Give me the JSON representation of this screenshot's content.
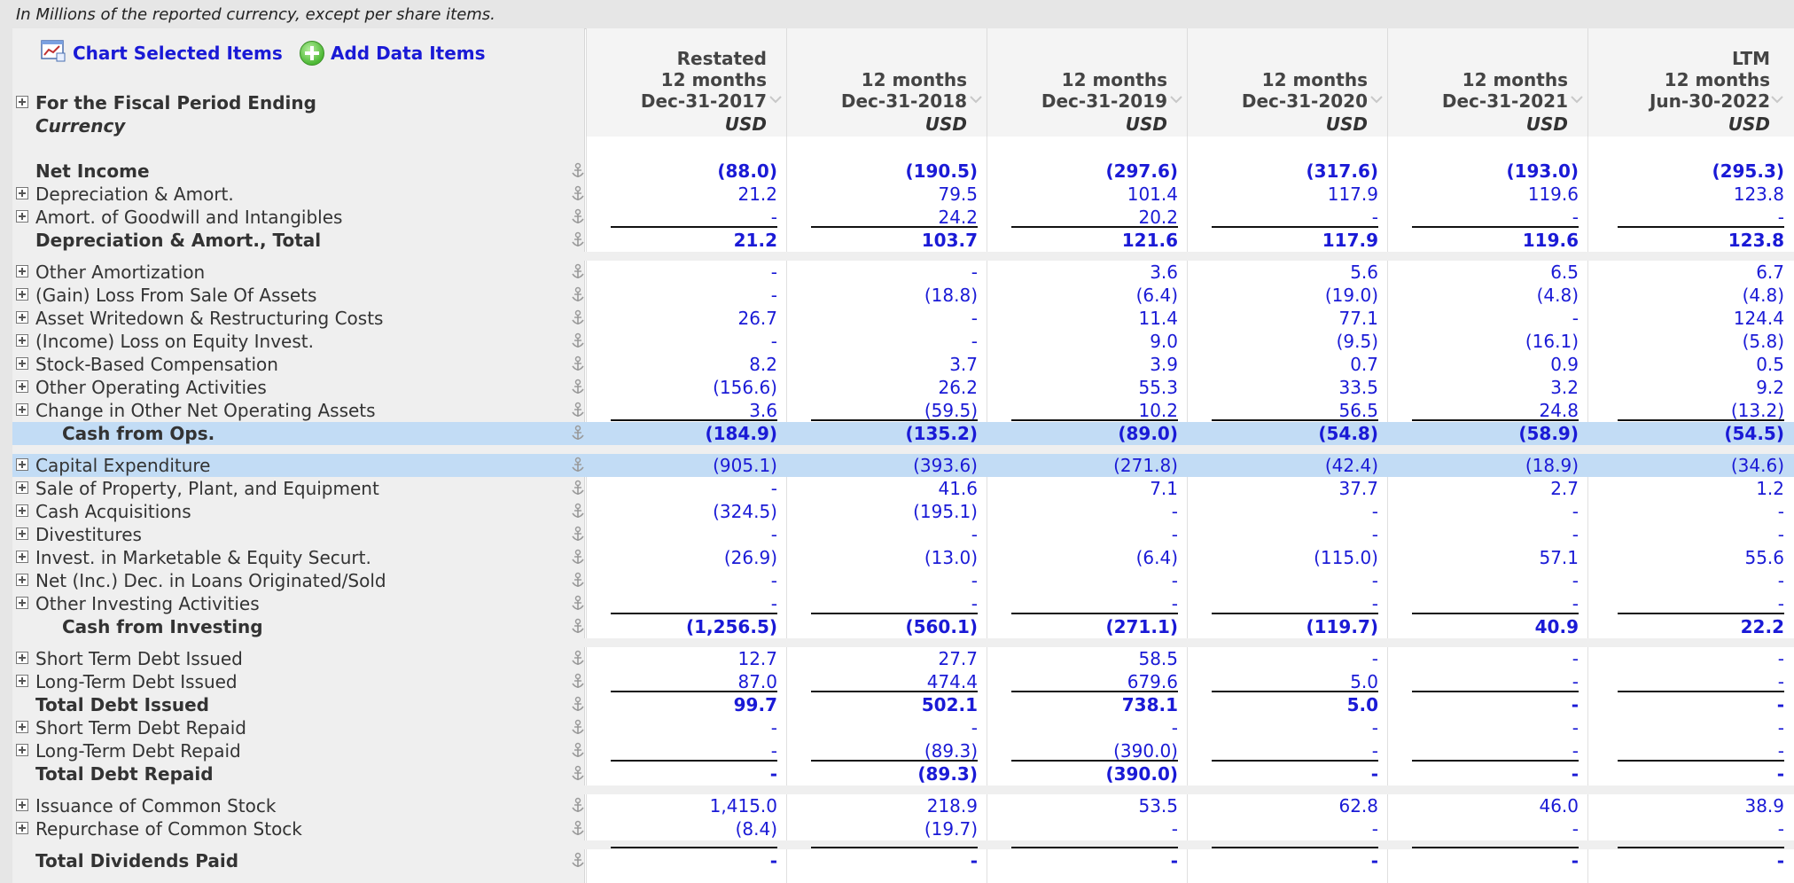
{
  "note": "In Millions of the reported currency, except per share items.",
  "toolbar": {
    "chart_label": "Chart Selected Items",
    "add_label": "Add Data Items"
  },
  "header": {
    "period_label": "For the Fiscal Period Ending",
    "currency_label": "Currency"
  },
  "columns": [
    {
      "pre": "Restated",
      "line1": "12 months",
      "line2": "Dec-31-2017",
      "currency": "USD"
    },
    {
      "pre": "",
      "line1": "12 months",
      "line2": "Dec-31-2018",
      "currency": "USD"
    },
    {
      "pre": "",
      "line1": "12 months",
      "line2": "Dec-31-2019",
      "currency": "USD"
    },
    {
      "pre": "",
      "line1": "12 months",
      "line2": "Dec-31-2020",
      "currency": "USD"
    },
    {
      "pre": "",
      "line1": "12 months",
      "line2": "Dec-31-2021",
      "currency": "USD"
    },
    {
      "pre": "LTM",
      "line1": "12 months",
      "line2": "Jun-30-2022",
      "currency": "USD"
    }
  ],
  "rows": [
    {
      "label": "Net Income",
      "bold": true,
      "indent": 0,
      "expand": false,
      "values": [
        "(88.0)",
        "(190.5)",
        "(297.6)",
        "(317.6)",
        "(193.0)",
        "(295.3)"
      ]
    },
    {
      "label": "Depreciation & Amort.",
      "expand": true,
      "values": [
        "21.2",
        "79.5",
        "101.4",
        "117.9",
        "119.6",
        "123.8"
      ]
    },
    {
      "label": "Amort. of Goodwill and Intangibles",
      "expand": true,
      "values": [
        "-",
        "24.2",
        "20.2",
        "-",
        "-",
        "-"
      ]
    },
    {
      "label": "Depreciation & Amort., Total",
      "bold": true,
      "total": true,
      "values": [
        "21.2",
        "103.7",
        "121.6",
        "117.9",
        "119.6",
        "123.8"
      ]
    },
    {
      "gap": true
    },
    {
      "label": "Other Amortization",
      "expand": true,
      "values": [
        "-",
        "-",
        "3.6",
        "5.6",
        "6.5",
        "6.7"
      ]
    },
    {
      "label": "(Gain) Loss From Sale Of Assets",
      "expand": true,
      "values": [
        "-",
        "(18.8)",
        "(6.4)",
        "(19.0)",
        "(4.8)",
        "(4.8)"
      ]
    },
    {
      "label": "Asset Writedown & Restructuring Costs",
      "expand": true,
      "values": [
        "26.7",
        "-",
        "11.4",
        "77.1",
        "-",
        "124.4"
      ]
    },
    {
      "label": "(Income) Loss on Equity Invest.",
      "expand": true,
      "values": [
        "-",
        "-",
        "9.0",
        "(9.5)",
        "(16.1)",
        "(5.8)"
      ]
    },
    {
      "label": "Stock-Based Compensation",
      "expand": true,
      "values": [
        "8.2",
        "3.7",
        "3.9",
        "0.7",
        "0.9",
        "0.5"
      ]
    },
    {
      "label": "Other Operating Activities",
      "expand": true,
      "values": [
        "(156.6)",
        "26.2",
        "55.3",
        "33.5",
        "3.2",
        "9.2"
      ]
    },
    {
      "label": "Change in Other Net Operating Assets",
      "expand": true,
      "values": [
        "3.6",
        "(59.5)",
        "10.2",
        "56.5",
        "24.8",
        "(13.2)"
      ]
    },
    {
      "label": "Cash from Ops.",
      "bold": true,
      "total": true,
      "sub": true,
      "selected": true,
      "values": [
        "(184.9)",
        "(135.2)",
        "(89.0)",
        "(54.8)",
        "(58.9)",
        "(54.5)"
      ]
    },
    {
      "gap": true
    },
    {
      "label": "Capital Expenditure",
      "expand": true,
      "selected": true,
      "values": [
        "(905.1)",
        "(393.6)",
        "(271.8)",
        "(42.4)",
        "(18.9)",
        "(34.6)"
      ]
    },
    {
      "label": "Sale of Property, Plant, and Equipment",
      "expand": true,
      "values": [
        "-",
        "41.6",
        "7.1",
        "37.7",
        "2.7",
        "1.2"
      ]
    },
    {
      "label": "Cash Acquisitions",
      "expand": true,
      "values": [
        "(324.5)",
        "(195.1)",
        "-",
        "-",
        "-",
        "-"
      ]
    },
    {
      "label": "Divestitures",
      "expand": true,
      "values": [
        "-",
        "-",
        "-",
        "-",
        "-",
        "-"
      ]
    },
    {
      "label": "Invest. in Marketable & Equity Securt.",
      "expand": true,
      "values": [
        "(26.9)",
        "(13.0)",
        "(6.4)",
        "(115.0)",
        "57.1",
        "55.6"
      ]
    },
    {
      "label": "Net (Inc.) Dec. in Loans Originated/Sold",
      "expand": true,
      "values": [
        "-",
        "-",
        "-",
        "-",
        "-",
        "-"
      ]
    },
    {
      "label": "Other Investing Activities",
      "expand": true,
      "values": [
        "-",
        "-",
        "-",
        "-",
        "-",
        "-"
      ]
    },
    {
      "label": "Cash from Investing",
      "bold": true,
      "total": true,
      "sub": true,
      "values": [
        "(1,256.5)",
        "(560.1)",
        "(271.1)",
        "(119.7)",
        "40.9",
        "22.2"
      ]
    },
    {
      "gap": true
    },
    {
      "label": "Short Term Debt Issued",
      "expand": true,
      "values": [
        "12.7",
        "27.7",
        "58.5",
        "-",
        "-",
        "-"
      ]
    },
    {
      "label": "Long-Term Debt Issued",
      "expand": true,
      "values": [
        "87.0",
        "474.4",
        "679.6",
        "5.0",
        "-",
        "-"
      ]
    },
    {
      "label": "Total Debt Issued",
      "bold": true,
      "total": true,
      "values": [
        "99.7",
        "502.1",
        "738.1",
        "5.0",
        "-",
        "-"
      ]
    },
    {
      "label": "Short Term Debt Repaid",
      "expand": true,
      "values": [
        "-",
        "-",
        "-",
        "-",
        "-",
        "-"
      ]
    },
    {
      "label": "Long-Term Debt Repaid",
      "expand": true,
      "values": [
        "-",
        "(89.3)",
        "(390.0)",
        "-",
        "-",
        "-"
      ]
    },
    {
      "label": "Total Debt Repaid",
      "bold": true,
      "total": true,
      "values": [
        "-",
        "(89.3)",
        "(390.0)",
        "-",
        "-",
        "-"
      ]
    },
    {
      "gap": true
    },
    {
      "label": "Issuance of Common Stock",
      "expand": true,
      "values": [
        "1,415.0",
        "218.9",
        "53.5",
        "62.8",
        "46.0",
        "38.9"
      ]
    },
    {
      "label": "Repurchase of Common Stock",
      "expand": true,
      "values": [
        "(8.4)",
        "(19.7)",
        "-",
        "-",
        "-",
        "-"
      ]
    },
    {
      "gap": true
    },
    {
      "label": "Total Dividends Paid",
      "bold": true,
      "total": true,
      "values": [
        "-",
        "-",
        "-",
        "-",
        "-",
        "-"
      ]
    }
  ],
  "colors": {
    "link": "#1a1ad6",
    "selected_row": "#c2dcf5",
    "label_bg": "#efefef"
  }
}
